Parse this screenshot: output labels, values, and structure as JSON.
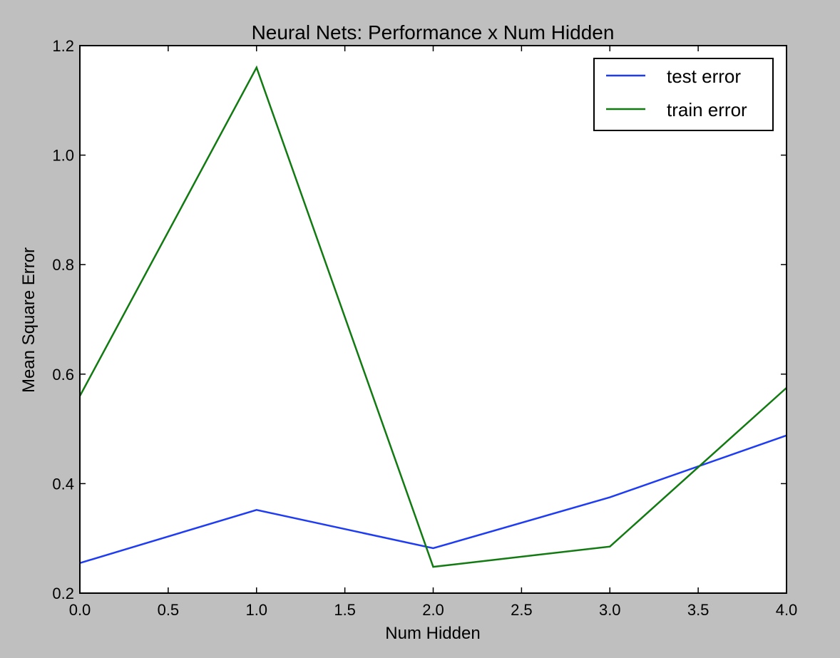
{
  "chart_data": {
    "type": "line",
    "title": "Neural Nets: Performance x Num Hidden",
    "xlabel": "Num Hidden",
    "ylabel": "Mean Square Error",
    "xlim": [
      0.0,
      4.0
    ],
    "ylim": [
      0.2,
      1.2
    ],
    "xticks": [
      0.0,
      0.5,
      1.0,
      1.5,
      2.0,
      2.5,
      3.0,
      3.5,
      4.0
    ],
    "xtick_labels": [
      "0.0",
      "0.5",
      "1.0",
      "1.5",
      "2.0",
      "2.5",
      "3.0",
      "3.5",
      "4.0"
    ],
    "yticks": [
      0.2,
      0.4,
      0.6,
      0.8,
      1.0,
      1.2
    ],
    "ytick_labels": [
      "0.2",
      "0.4",
      "0.6",
      "0.8",
      "1.0",
      "1.2"
    ],
    "grid": false,
    "legend_position": "top-right",
    "x": [
      0,
      1,
      2,
      3,
      4
    ],
    "series": [
      {
        "name": "test error",
        "color": "#1f3cf5",
        "values": [
          0.255,
          0.352,
          0.282,
          0.375,
          0.488
        ]
      },
      {
        "name": "train error",
        "color": "#117a11",
        "values": [
          0.56,
          1.16,
          0.248,
          0.285,
          0.575
        ]
      }
    ]
  }
}
